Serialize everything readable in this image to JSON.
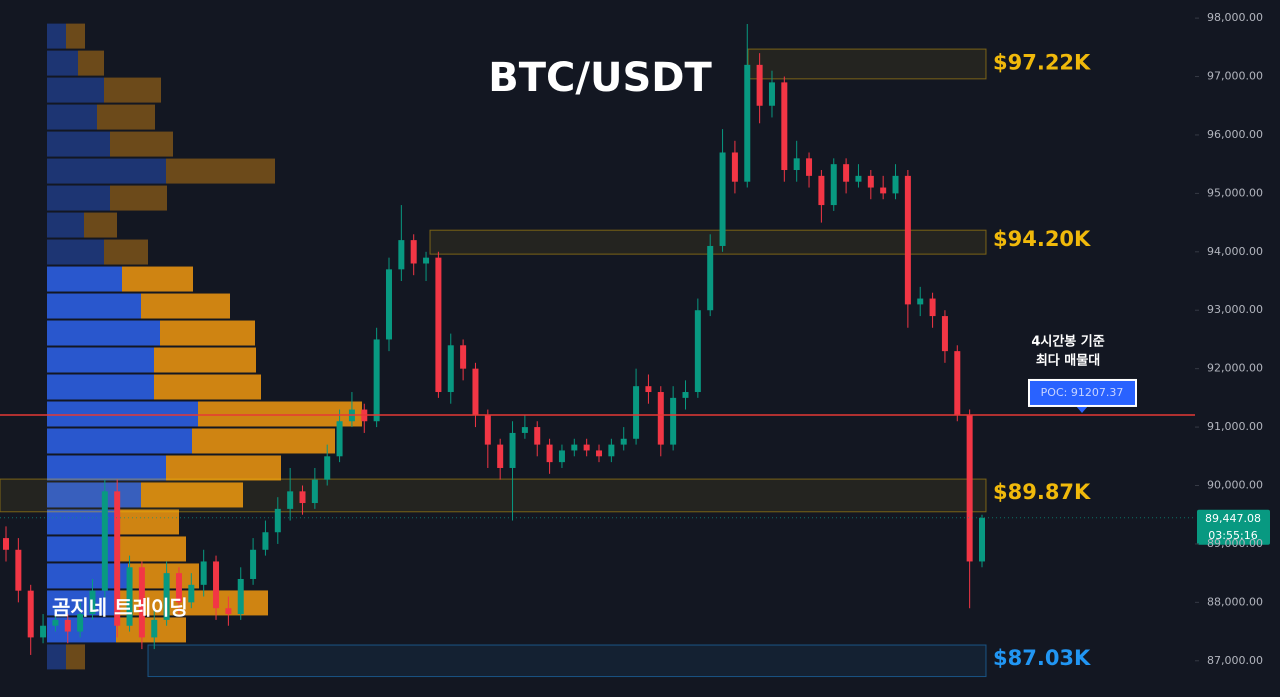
{
  "chart_data": {
    "type": "candlestick",
    "title": "BTC/USDT",
    "watermark": "곰지네 트레이딩",
    "ylim": [
      86380,
      98310
    ],
    "yticks": [
      {
        "value": 87000,
        "label": "87,000.00"
      },
      {
        "value": 88000,
        "label": "88,000.00"
      },
      {
        "value": 89000,
        "label": "89,000.00"
      },
      {
        "value": 90000,
        "label": "90,000.00"
      },
      {
        "value": 91000,
        "label": "91,000.00"
      },
      {
        "value": 92000,
        "label": "92,000.00"
      },
      {
        "value": 93000,
        "label": "93,000.00"
      },
      {
        "value": 94000,
        "label": "94,000.00"
      },
      {
        "value": 95000,
        "label": "95,000.00"
      },
      {
        "value": 96000,
        "label": "96,000.00"
      },
      {
        "value": 97000,
        "label": "97,000.00"
      },
      {
        "value": 98000,
        "label": "98,000.00"
      }
    ],
    "grid": false,
    "up_color": "#089981",
    "down_color": "#f23645",
    "candles": [
      {
        "o": 89100,
        "h": 89300,
        "l": 88700,
        "c": 88900
      },
      {
        "o": 88900,
        "h": 89100,
        "l": 88000,
        "c": 88200
      },
      {
        "o": 88200,
        "h": 88300,
        "l": 87100,
        "c": 87400
      },
      {
        "o": 87400,
        "h": 87800,
        "l": 87300,
        "c": 87600
      },
      {
        "o": 87600,
        "h": 87900,
        "l": 87500,
        "c": 87700
      },
      {
        "o": 87700,
        "h": 87800,
        "l": 87300,
        "c": 87500
      },
      {
        "o": 87500,
        "h": 88000,
        "l": 87400,
        "c": 87800
      },
      {
        "o": 87800,
        "h": 88400,
        "l": 87700,
        "c": 88200
      },
      {
        "o": 88200,
        "h": 90100,
        "l": 88000,
        "c": 89900
      },
      {
        "o": 89900,
        "h": 90100,
        "l": 87400,
        "c": 87600
      },
      {
        "o": 87600,
        "h": 88800,
        "l": 87500,
        "c": 88600
      },
      {
        "o": 88600,
        "h": 88700,
        "l": 87200,
        "c": 87400
      },
      {
        "o": 87400,
        "h": 87900,
        "l": 87200,
        "c": 87700
      },
      {
        "o": 87700,
        "h": 88700,
        "l": 87600,
        "c": 88500
      },
      {
        "o": 88500,
        "h": 88600,
        "l": 87800,
        "c": 88000
      },
      {
        "o": 88000,
        "h": 88500,
        "l": 87900,
        "c": 88300
      },
      {
        "o": 88300,
        "h": 88900,
        "l": 88100,
        "c": 88700
      },
      {
        "o": 88700,
        "h": 88800,
        "l": 87700,
        "c": 87900
      },
      {
        "o": 87900,
        "h": 88100,
        "l": 87600,
        "c": 87800
      },
      {
        "o": 87800,
        "h": 88600,
        "l": 87700,
        "c": 88400
      },
      {
        "o": 88400,
        "h": 89100,
        "l": 88300,
        "c": 88900
      },
      {
        "o": 88900,
        "h": 89400,
        "l": 88800,
        "c": 89200
      },
      {
        "o": 89200,
        "h": 89800,
        "l": 89000,
        "c": 89600
      },
      {
        "o": 89600,
        "h": 90300,
        "l": 89400,
        "c": 89900
      },
      {
        "o": 89900,
        "h": 90000,
        "l": 89500,
        "c": 89700
      },
      {
        "o": 89700,
        "h": 90300,
        "l": 89600,
        "c": 90100
      },
      {
        "o": 90100,
        "h": 90700,
        "l": 90000,
        "c": 90500
      },
      {
        "o": 90500,
        "h": 91300,
        "l": 90400,
        "c": 91100
      },
      {
        "o": 91100,
        "h": 91600,
        "l": 91000,
        "c": 91300
      },
      {
        "o": 91300,
        "h": 91400,
        "l": 90900,
        "c": 91100
      },
      {
        "o": 91100,
        "h": 92700,
        "l": 91000,
        "c": 92500
      },
      {
        "o": 92500,
        "h": 93900,
        "l": 92300,
        "c": 93700
      },
      {
        "o": 93700,
        "h": 94800,
        "l": 93500,
        "c": 94200
      },
      {
        "o": 94200,
        "h": 94300,
        "l": 93600,
        "c": 93800
      },
      {
        "o": 93800,
        "h": 94000,
        "l": 93500,
        "c": 93900
      },
      {
        "o": 93900,
        "h": 94000,
        "l": 91500,
        "c": 91600
      },
      {
        "o": 91600,
        "h": 92600,
        "l": 91400,
        "c": 92400
      },
      {
        "o": 92400,
        "h": 92500,
        "l": 91800,
        "c": 92000
      },
      {
        "o": 92000,
        "h": 92100,
        "l": 91000,
        "c": 91200
      },
      {
        "o": 91200,
        "h": 91300,
        "l": 90300,
        "c": 90700
      },
      {
        "o": 90700,
        "h": 90800,
        "l": 90100,
        "c": 90300
      },
      {
        "o": 90300,
        "h": 91100,
        "l": 89400,
        "c": 90900
      },
      {
        "o": 90900,
        "h": 91200,
        "l": 90800,
        "c": 91000
      },
      {
        "o": 91000,
        "h": 91100,
        "l": 90500,
        "c": 90700
      },
      {
        "o": 90700,
        "h": 90800,
        "l": 90200,
        "c": 90400
      },
      {
        "o": 90400,
        "h": 90700,
        "l": 90300,
        "c": 90600
      },
      {
        "o": 90600,
        "h": 90800,
        "l": 90500,
        "c": 90700
      },
      {
        "o": 90700,
        "h": 90800,
        "l": 90500,
        "c": 90600
      },
      {
        "o": 90600,
        "h": 90700,
        "l": 90400,
        "c": 90500
      },
      {
        "o": 90500,
        "h": 90800,
        "l": 90400,
        "c": 90700
      },
      {
        "o": 90700,
        "h": 91000,
        "l": 90600,
        "c": 90800
      },
      {
        "o": 90800,
        "h": 92000,
        "l": 90700,
        "c": 91700
      },
      {
        "o": 91700,
        "h": 91900,
        "l": 91400,
        "c": 91600
      },
      {
        "o": 91600,
        "h": 91700,
        "l": 90500,
        "c": 90700
      },
      {
        "o": 90700,
        "h": 91700,
        "l": 90600,
        "c": 91500
      },
      {
        "o": 91500,
        "h": 91800,
        "l": 91300,
        "c": 91600
      },
      {
        "o": 91600,
        "h": 93200,
        "l": 91500,
        "c": 93000
      },
      {
        "o": 93000,
        "h": 94300,
        "l": 92900,
        "c": 94100
      },
      {
        "o": 94100,
        "h": 96100,
        "l": 94000,
        "c": 95700
      },
      {
        "o": 95700,
        "h": 95900,
        "l": 95000,
        "c": 95200
      },
      {
        "o": 95200,
        "h": 97900,
        "l": 95100,
        "c": 97200
      },
      {
        "o": 97200,
        "h": 97400,
        "l": 96200,
        "c": 96500
      },
      {
        "o": 96500,
        "h": 97100,
        "l": 96300,
        "c": 96900
      },
      {
        "o": 96900,
        "h": 97000,
        "l": 95200,
        "c": 95400
      },
      {
        "o": 95400,
        "h": 95900,
        "l": 95200,
        "c": 95600
      },
      {
        "o": 95600,
        "h": 95700,
        "l": 95100,
        "c": 95300
      },
      {
        "o": 95300,
        "h": 95400,
        "l": 94500,
        "c": 94800
      },
      {
        "o": 94800,
        "h": 95600,
        "l": 94700,
        "c": 95500
      },
      {
        "o": 95500,
        "h": 95600,
        "l": 95000,
        "c": 95200
      },
      {
        "o": 95200,
        "h": 95500,
        "l": 95100,
        "c": 95300
      },
      {
        "o": 95300,
        "h": 95400,
        "l": 94900,
        "c": 95100
      },
      {
        "o": 95100,
        "h": 95300,
        "l": 94900,
        "c": 95000
      },
      {
        "o": 95000,
        "h": 95500,
        "l": 94900,
        "c": 95300
      },
      {
        "o": 95300,
        "h": 95400,
        "l": 92700,
        "c": 93100
      },
      {
        "o": 93100,
        "h": 93400,
        "l": 92900,
        "c": 93200
      },
      {
        "o": 93200,
        "h": 93300,
        "l": 92700,
        "c": 92900
      },
      {
        "o": 92900,
        "h": 93000,
        "l": 92100,
        "c": 92300
      },
      {
        "o": 92300,
        "h": 92400,
        "l": 91100,
        "c": 91200
      },
      {
        "o": 91200,
        "h": 91300,
        "l": 87900,
        "c": 88700
      },
      {
        "o": 88700,
        "h": 89500,
        "l": 88600,
        "c": 89447.08
      }
    ],
    "volume_profile": {
      "price_levels": [
        97692,
        97230,
        96768,
        96306,
        95844,
        95382,
        94920,
        94458,
        93996,
        93534,
        93072,
        92610,
        92148,
        91686,
        91224,
        90762,
        90300,
        89838,
        89376,
        88914,
        88452,
        87990,
        87528,
        87066
      ],
      "buy": [
        19,
        31,
        57,
        50,
        63,
        119,
        63,
        37,
        57,
        75,
        94,
        113,
        107,
        107,
        151,
        145,
        119,
        94,
        69,
        69,
        81,
        69,
        69,
        19
      ],
      "sell": [
        19,
        26,
        57,
        58,
        63,
        109,
        57,
        33,
        44,
        71,
        89,
        95,
        102,
        107,
        164,
        143,
        115,
        102,
        63,
        70,
        71,
        152,
        70,
        19
      ],
      "buy_color": "#2a5bd7",
      "sell_color": "#d98a12",
      "value_area": [
        87300,
        93770
      ]
    },
    "levels": [
      {
        "label": "$97.22K",
        "value": 97220,
        "zone": [
          96960,
          97470
        ],
        "color": "#f0b90b"
      },
      {
        "label": "$94.20K",
        "value": 94200,
        "zone": [
          93960,
          94370
        ],
        "color": "#f0b90b"
      },
      {
        "label": "$89.87K",
        "value": 89870,
        "zone": [
          89550,
          90110
        ],
        "color": "#f0b90b"
      },
      {
        "label": "$87.03K",
        "value": 87030,
        "zone": [
          86730,
          87270
        ],
        "color": "#2196f3"
      }
    ],
    "poc": {
      "label": "POC: 91207.37",
      "value": 91207.37,
      "color": "#e53935"
    },
    "annotation": [
      "4시간봉 기준",
      "최다 매물대"
    ],
    "last_price": {
      "value": 89447.08,
      "label": "89,447.08"
    },
    "countdown": "03:55:16"
  }
}
